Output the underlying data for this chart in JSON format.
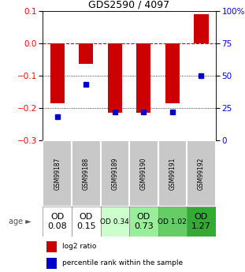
{
  "title": "GDS2590 / 4097",
  "samples": [
    "GSM99187",
    "GSM99188",
    "GSM99189",
    "GSM99190",
    "GSM99191",
    "GSM99192"
  ],
  "log2_ratio": [
    -0.185,
    -0.065,
    -0.215,
    -0.215,
    -0.185,
    0.09
  ],
  "percentile_rank_vals": [
    18,
    43,
    22,
    22,
    22,
    50
  ],
  "bar_color": "#cc0000",
  "dot_color": "#0000cc",
  "ylim_left": [
    -0.3,
    0.1
  ],
  "ylim_right": [
    0,
    100
  ],
  "yticks_left": [
    0.1,
    0,
    -0.1,
    -0.2,
    -0.3
  ],
  "yticks_right": [
    100,
    75,
    50,
    25,
    0
  ],
  "age_row": {
    "labels": [
      "OD\n0.08",
      "OD\n0.15",
      "OD 0.34",
      "OD\n0.73",
      "OD 1.02",
      "OD\n1.27"
    ],
    "colors": [
      "#ffffff",
      "#ffffff",
      "#ccffcc",
      "#99ee99",
      "#66cc66",
      "#33aa33"
    ],
    "font_sizes": [
      8,
      8,
      6.5,
      8,
      6.5,
      8
    ]
  },
  "legend_labels": [
    "log2 ratio",
    "percentile rank within the sample"
  ]
}
